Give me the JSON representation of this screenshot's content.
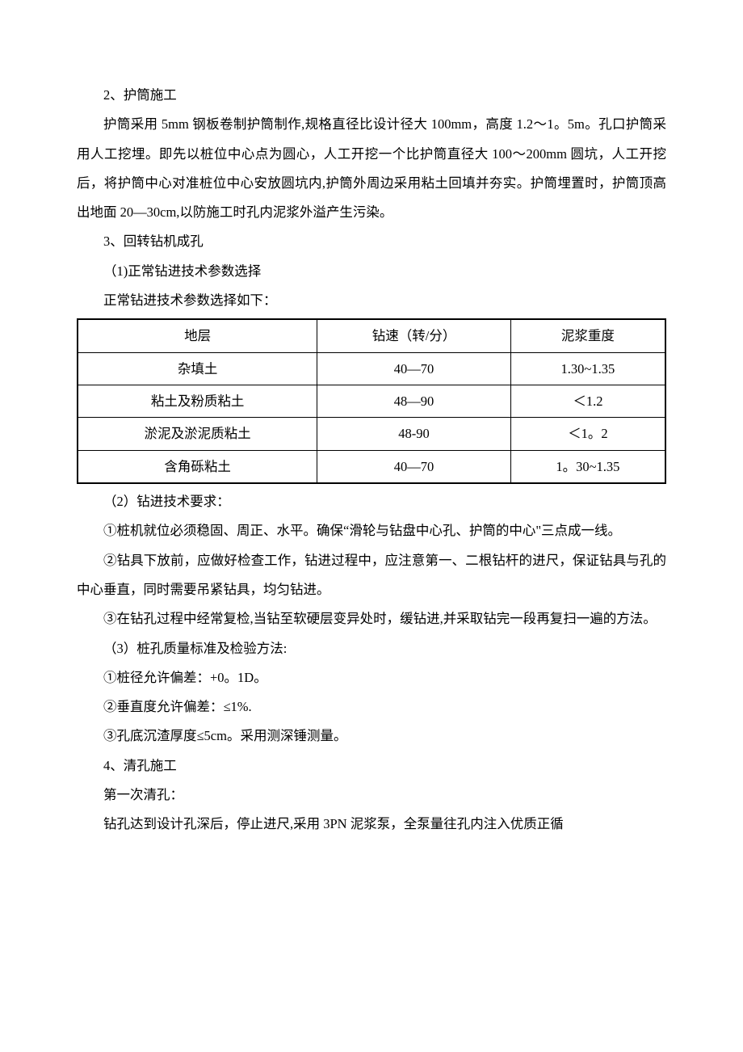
{
  "paragraphs": {
    "p1": "2、护筒施工",
    "p2": "护筒采用 5mm 钢板卷制护筒制作,规格直径比设计径大 100mm，高度 1.2～1。5m。孔口护筒采用人工挖埋。即先以桩位中心点为圆心，人工开挖一个比护筒直径大 100～200mm 圆坑，人工开挖后，将护筒中心对准桩位中心安放圆坑内,护筒外周边采用粘土回填并夯实。护筒埋置时，护筒顶高出地面 20—30cm,以防施工时孔内泥浆外溢产生污染。",
    "p3": "3、回转钻机成孔",
    "p4": "（1)正常钻进技术参数选择",
    "p5": "正常钻进技术参数选择如下：",
    "p6": "（2）钻进技术要求：",
    "p7": "①桩机就位必须稳固、周正、水平。确保“滑轮与钻盘中心孔、护筒的中心\"三点成一线。",
    "p8": "②钻具下放前，应做好检查工作，钻进过程中，应注意第一、二根钻杆的进尺，保证钻具与孔的中心垂直，同时需要吊紧钻具，均匀钻进。",
    "p9": "③在钻孔过程中经常复检,当钻至软硬层变异处时，缓钻进,并采取钻完一段再复扫一遍的方法。",
    "p10": "（3）桩孔质量标准及检验方法:",
    "p11": "①桩径允许偏差：+0。1D。",
    "p12": "②垂直度允许偏差：≤1%.",
    "p13": "③孔底沉渣厚度≤5cm。采用测深锤测量。",
    "p14": "4、清孔施工",
    "p15": "第一次清孔：",
    "p16": "钻孔达到设计孔深后，停止进尺,采用 3PN 泥浆泵，全泵量往孔内注入优质正循"
  },
  "table": {
    "columns": [
      "地层",
      "钻速（转/分）",
      "泥浆重度"
    ],
    "rows": [
      [
        "杂填土",
        "40—70",
        "1.30~1.35"
      ],
      [
        "粘土及粉质粘土",
        "48—90",
        "＜1.2"
      ],
      [
        "淤泥及淤泥质粘土",
        "48-90",
        "＜1。2"
      ],
      [
        "含角砾粘土",
        "40—70",
        "1。30~1.35"
      ]
    ]
  }
}
